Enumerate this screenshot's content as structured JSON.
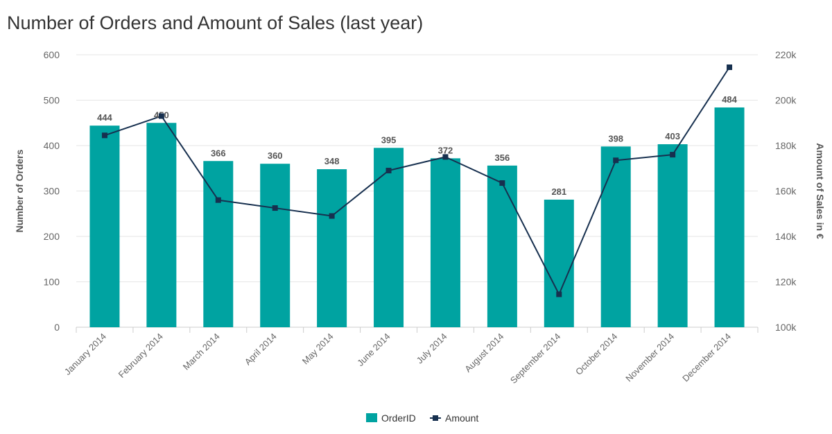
{
  "title": "Number of Orders and Amount of Sales (last year)",
  "colors": {
    "bar": "#00a3a1",
    "line": "#17304f",
    "grid": "#e6e6e6",
    "axis": "#cccccc"
  },
  "chart_data": {
    "type": "bar",
    "title": "Number of Orders and Amount of Sales (last year)",
    "categories": [
      "January 2014",
      "February 2014",
      "March 2014",
      "April 2014",
      "May 2014",
      "June 2014",
      "July 2014",
      "August 2014",
      "September 2014",
      "October 2014",
      "November 2014",
      "December 2014"
    ],
    "series": [
      {
        "name": "OrderID",
        "type": "bar",
        "axis": "left",
        "values": [
          444,
          450,
          366,
          360,
          348,
          395,
          372,
          356,
          281,
          398,
          403,
          484
        ]
      },
      {
        "name": "Amount",
        "type": "line",
        "axis": "right",
        "values": [
          184500,
          193000,
          156000,
          152500,
          149000,
          169000,
          175000,
          163500,
          114500,
          173500,
          176000,
          214500
        ]
      }
    ],
    "ylabel_left": "Number of Orders",
    "ylabel_right": "Amount of Sales in €",
    "ylim_left": [
      0,
      600
    ],
    "ylim_right": [
      100000,
      220000
    ],
    "yticks_left": [
      "0",
      "100",
      "200",
      "300",
      "400",
      "500",
      "600"
    ],
    "yticks_right": [
      "100k",
      "120k",
      "140k",
      "160k",
      "180k",
      "200k",
      "220k"
    ],
    "grid": true,
    "legend_position": "bottom-center"
  }
}
